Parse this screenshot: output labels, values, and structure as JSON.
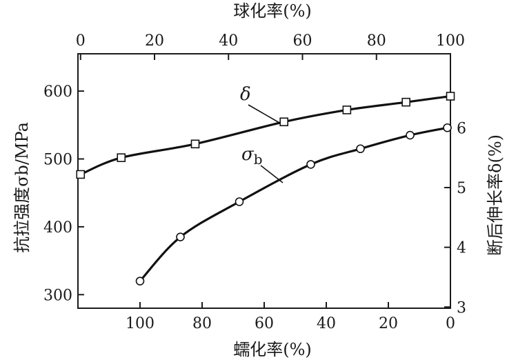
{
  "chart_data": {
    "type": "line",
    "x_bottom": {
      "label": "蠕化率(%)",
      "range": [
        120,
        0
      ],
      "ticks": [
        100,
        80,
        60,
        40,
        20,
        0
      ]
    },
    "x_top": {
      "label": "球化率(%)",
      "range": [
        -0.7,
        100
      ],
      "ticks": [
        0,
        20,
        40,
        60,
        80,
        100
      ]
    },
    "y_left": {
      "label": "抗拉强度σb/MPa",
      "range": [
        280,
        655
      ],
      "ticks": [
        300,
        400,
        500,
        600
      ]
    },
    "y_right": {
      "label": "断后伸长率δ(%)",
      "range": [
        2.98,
        7.24
      ],
      "ticks": [
        3,
        4,
        5,
        6
      ]
    },
    "series": [
      {
        "name": "δ",
        "label_main": "δ",
        "label_sub": "",
        "marker": "square",
        "x_axis": "top",
        "y_axis": "right",
        "x": [
          0,
          11,
          31,
          55,
          72,
          88,
          100
        ],
        "y": [
          5.22,
          5.5,
          5.73,
          6.1,
          6.3,
          6.43,
          6.53
        ]
      },
      {
        "name": "σb",
        "label_main": "σ",
        "label_sub": "b",
        "marker": "circle",
        "x_axis": "bottom",
        "y_axis": "left",
        "x": [
          100,
          87,
          68,
          45,
          29,
          13,
          1
        ],
        "y": [
          320,
          385,
          437,
          492,
          515,
          535,
          546
        ]
      }
    ],
    "grid": false,
    "legend": "inline labels"
  }
}
